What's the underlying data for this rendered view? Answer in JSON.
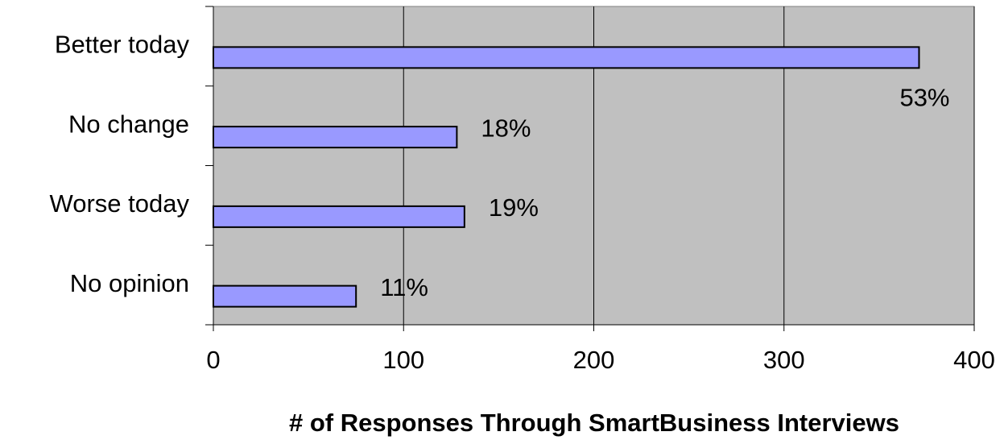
{
  "chart_data": {
    "type": "bar",
    "orientation": "horizontal",
    "x_label": "# of Responses Through SmartBusiness Interviews",
    "categories": [
      "Better today",
      "No change",
      "Worse today",
      "No opinion"
    ],
    "values": [
      371,
      128,
      132,
      75
    ],
    "value_labels": [
      "53%",
      "18%",
      "19%",
      "11%"
    ],
    "color": "#9999ff",
    "xlim": [
      0,
      400
    ],
    "xticks": [
      0,
      100,
      200,
      300,
      400
    ],
    "grid": true
  }
}
